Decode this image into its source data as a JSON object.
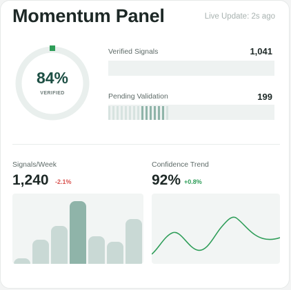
{
  "header": {
    "title": "Momentum Panel",
    "live_update": "Live Update: 2s ago"
  },
  "gauge": {
    "percent_label": "84%",
    "sub_label": "VERIFIED",
    "percent": 84
  },
  "metrics": [
    {
      "label": "Verified Signals",
      "value": "1,041"
    },
    {
      "label": "Pending Validation",
      "value": "199"
    }
  ],
  "signals_week": {
    "label": "Signals/Week",
    "value": "1,240",
    "delta": "-2.1%",
    "delta_color": "#d9534f",
    "bar_levels": [
      0.08,
      0.34,
      0.54,
      0.89,
      0.39,
      0.31,
      0.64
    ],
    "highlight_index": 3
  },
  "confidence": {
    "label": "Confidence Trend",
    "value": "92%",
    "delta": "+0.8%",
    "delta_color": "#2e9d58"
  },
  "colors": {
    "accent": "#2e9d58",
    "dark_green": "#1d4f44",
    "bar_light": "#c9d9d5",
    "bar_dark": "#8fb4a9"
  }
}
